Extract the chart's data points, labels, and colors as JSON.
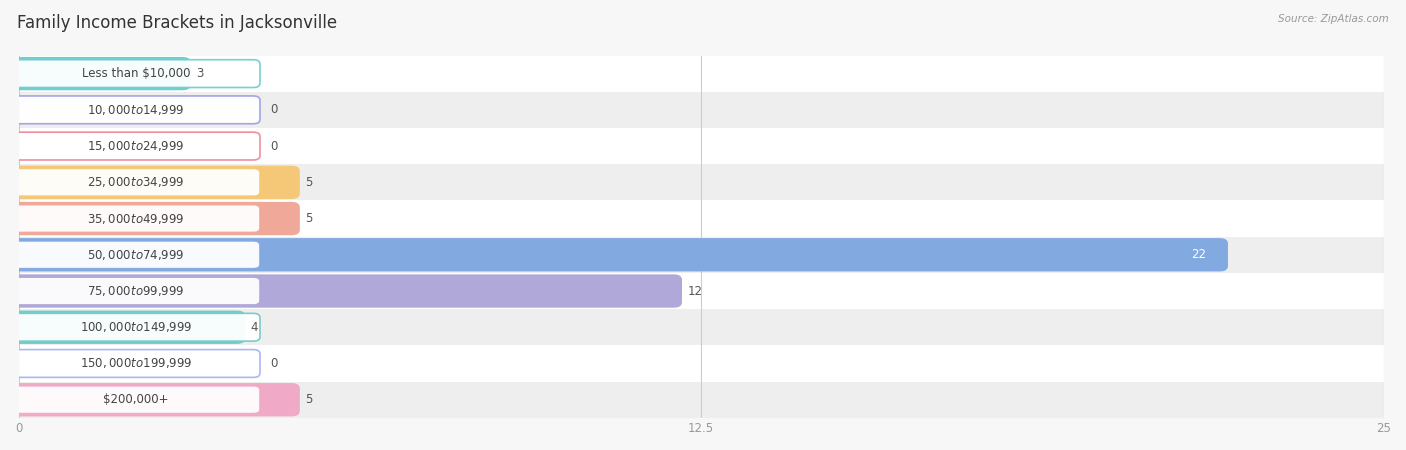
{
  "title": "Family Income Brackets in Jacksonville",
  "source": "Source: ZipAtlas.com",
  "categories": [
    "Less than $10,000",
    "$10,000 to $14,999",
    "$15,000 to $24,999",
    "$25,000 to $34,999",
    "$35,000 to $49,999",
    "$50,000 to $74,999",
    "$75,000 to $99,999",
    "$100,000 to $149,999",
    "$150,000 to $199,999",
    "$200,000+"
  ],
  "values": [
    3,
    0,
    0,
    5,
    5,
    22,
    12,
    4,
    0,
    5
  ],
  "bar_colors": [
    "#72cece",
    "#a0a0e8",
    "#f08898",
    "#f5c878",
    "#f0a898",
    "#82aae0",
    "#b0a8d8",
    "#72ccc8",
    "#a8b4f0",
    "#f0aac8"
  ],
  "background_color": "#f7f7f7",
  "xlim": [
    0,
    25
  ],
  "xticks": [
    0,
    12.5,
    25
  ],
  "title_fontsize": 12,
  "label_fontsize": 8.5,
  "value_fontsize": 8.5,
  "bar_height": 0.62
}
